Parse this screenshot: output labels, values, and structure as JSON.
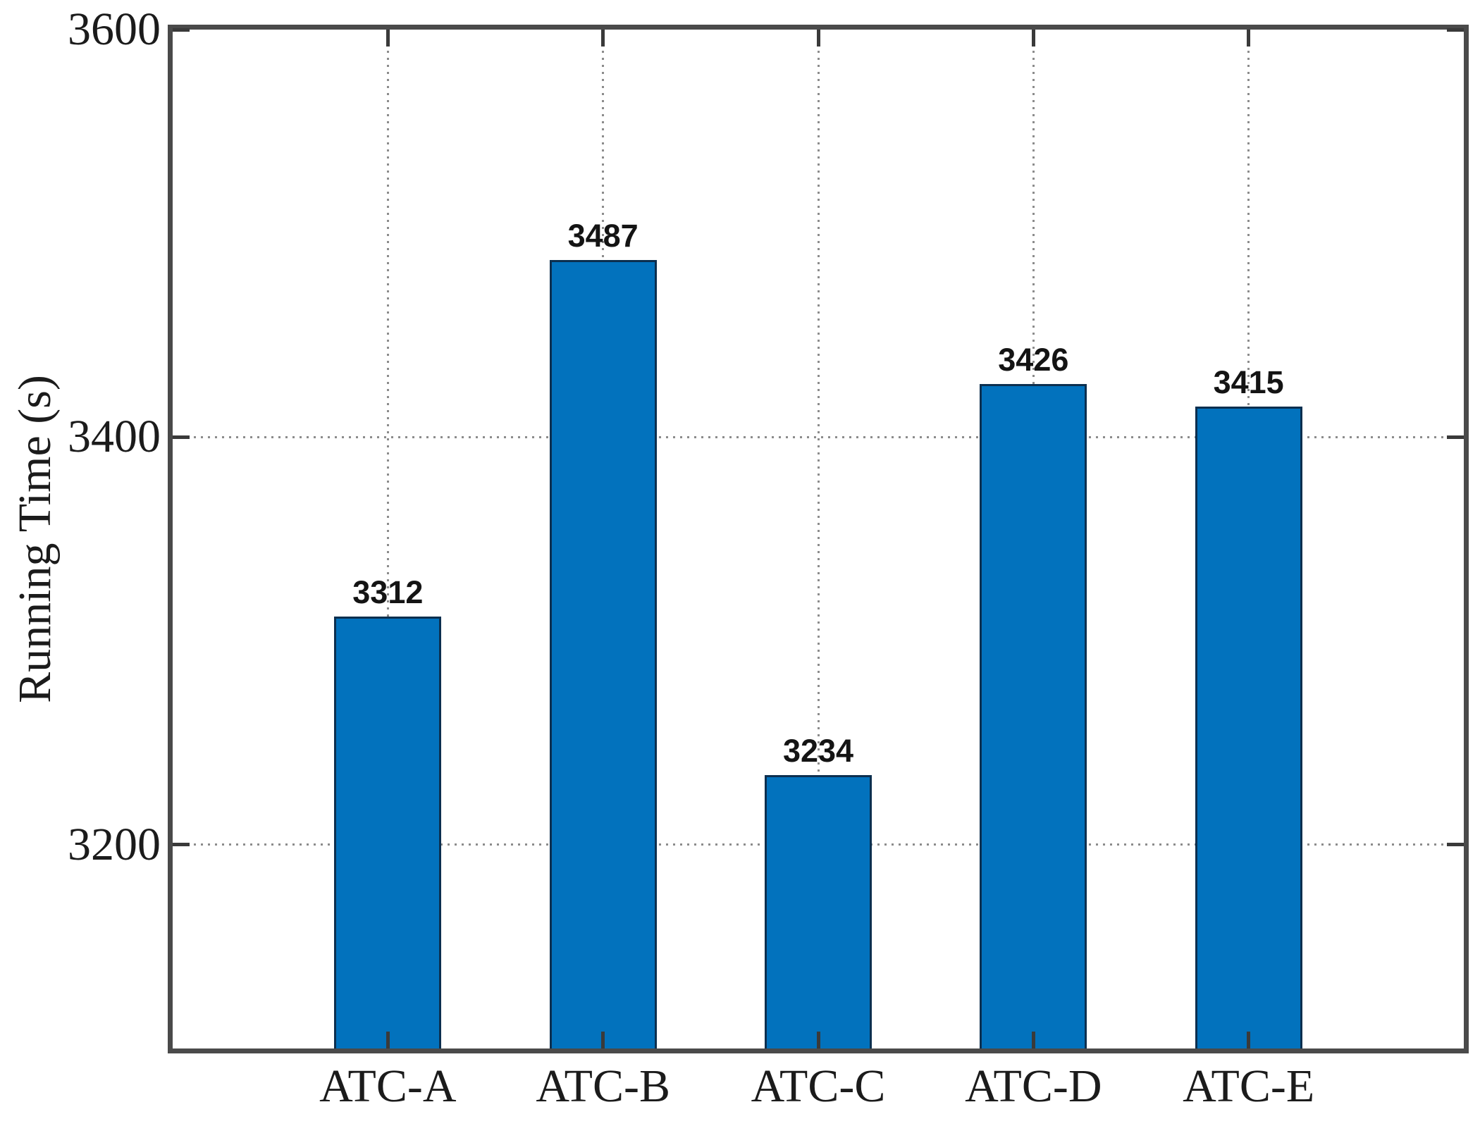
{
  "chart_data": {
    "type": "bar",
    "title": "",
    "xlabel": "",
    "ylabel": "Running Time (s)",
    "categories": [
      "ATC-A",
      "ATC-B",
      "ATC-C",
      "ATC-D",
      "ATC-E"
    ],
    "values": [
      3312,
      3487,
      3234,
      3426,
      3415
    ],
    "value_labels": [
      "3312",
      "3487",
      "3234",
      "3426",
      "3415"
    ],
    "ylim": [
      3100,
      3600
    ],
    "yticks": [
      3200,
      3400,
      3600
    ],
    "grid": "dotted, horizontal at y-ticks and vertical at bar centers",
    "legend": "none",
    "bar_fill_color": "#0272bd",
    "bar_edge_color": "#0c2f4f",
    "axis_frame_color": "#4a4a4a",
    "grid_color": "#8c8c8c",
    "text_color": "#1b1b1b"
  }
}
